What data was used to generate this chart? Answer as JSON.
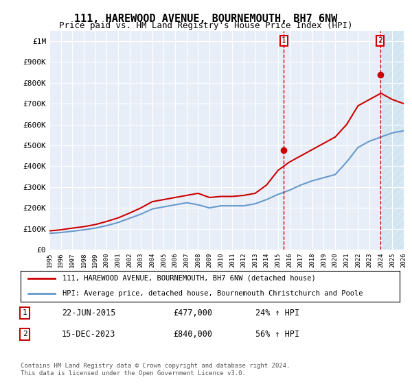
{
  "title": "111, HAREWOOD AVENUE, BOURNEMOUTH, BH7 6NW",
  "subtitle": "Price paid vs. HM Land Registry's House Price Index (HPI)",
  "background_color": "#f0f4ff",
  "plot_bg_color": "#e8eef8",
  "ylim": [
    0,
    1050000
  ],
  "yticks": [
    0,
    100000,
    200000,
    300000,
    400000,
    500000,
    600000,
    700000,
    800000,
    900000,
    1000000
  ],
  "ytick_labels": [
    "£0",
    "£100K",
    "£200K",
    "£300K",
    "£400K",
    "£500K",
    "£600K",
    "£700K",
    "£800K",
    "£900K",
    "£1M"
  ],
  "years": [
    1995,
    1996,
    1997,
    1998,
    1999,
    2000,
    2001,
    2002,
    2003,
    2004,
    2005,
    2006,
    2007,
    2008,
    2009,
    2010,
    2011,
    2012,
    2013,
    2014,
    2015,
    2016,
    2017,
    2018,
    2019,
    2020,
    2021,
    2022,
    2023,
    2024,
    2025,
    2026
  ],
  "hpi_values": [
    78000,
    82000,
    88000,
    95000,
    103000,
    115000,
    130000,
    150000,
    170000,
    195000,
    205000,
    215000,
    225000,
    215000,
    200000,
    210000,
    210000,
    210000,
    220000,
    240000,
    265000,
    285000,
    310000,
    330000,
    345000,
    360000,
    420000,
    490000,
    520000,
    540000,
    560000,
    570000
  ],
  "price_values": [
    90000,
    95000,
    103000,
    110000,
    120000,
    135000,
    152000,
    175000,
    200000,
    230000,
    240000,
    250000,
    260000,
    270000,
    250000,
    255000,
    255000,
    260000,
    270000,
    310000,
    380000,
    420000,
    450000,
    480000,
    510000,
    540000,
    600000,
    690000,
    720000,
    750000,
    720000,
    700000
  ],
  "sale1_date": "22-JUN-2015",
  "sale1_year": 2015.5,
  "sale1_price": 477000,
  "sale1_label": "1",
  "sale2_date": "15-DEC-2023",
  "sale2_year": 2023.95,
  "sale2_price": 840000,
  "sale2_label": "2",
  "red_color": "#cc0000",
  "blue_color": "#6699cc",
  "legend_line1": "111, HAREWOOD AVENUE, BOURNEMOUTH, BH7 6NW (detached house)",
  "legend_line2": "HPI: Average price, detached house, Bournemouth Christchurch and Poole",
  "table_row1": [
    "1",
    "22-JUN-2015",
    "£477,000",
    "24% ↑ HPI"
  ],
  "table_row2": [
    "2",
    "15-DEC-2023",
    "£840,000",
    "56% ↑ HPI"
  ],
  "footer": "Contains HM Land Registry data © Crown copyright and database right 2024.\nThis data is licensed under the Open Government Licence v3.0.",
  "xmin": 1995,
  "xmax": 2026
}
